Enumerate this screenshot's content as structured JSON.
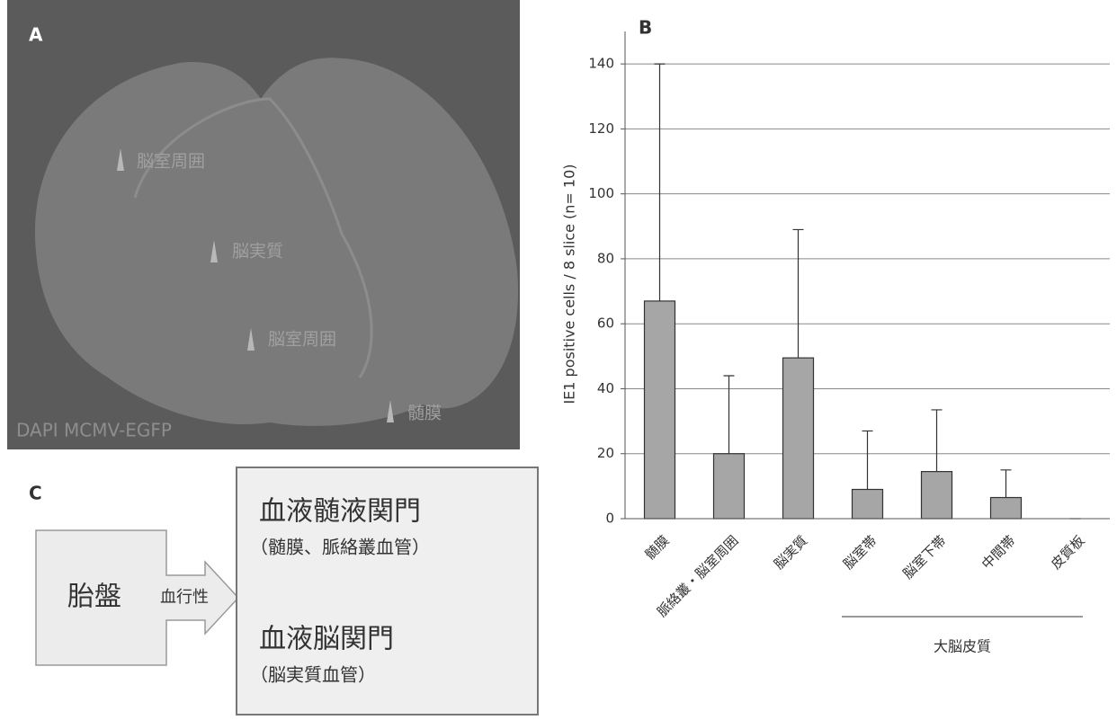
{
  "panel_a": {
    "label": "A",
    "annotations": [
      "脳室周囲",
      "脳実質",
      "脳室周囲",
      "髄膜"
    ],
    "caption": "DAPI  MCMV-EGFP"
  },
  "chart_data": {
    "type": "bar",
    "panel_label": "B",
    "ylabel": "IE1 positive cells / 8 slice  (n= 10)",
    "categories": [
      "髄膜",
      "脈絡叢・脳室周囲",
      "脳実質",
      "脳室帯",
      "脳室下帯",
      "中間帯",
      "皮質板"
    ],
    "values": [
      67,
      20,
      49.5,
      9,
      14.5,
      6.5,
      0
    ],
    "errors": [
      73,
      24,
      39.5,
      18,
      19,
      8.5,
      0
    ],
    "color": "#a6a6a6",
    "ylim": [
      0,
      150
    ],
    "yticks": [
      0,
      20,
      40,
      60,
      80,
      100,
      120,
      140
    ],
    "grid": true,
    "group_label": "大脳皮質"
  },
  "panel_c": {
    "label": "C",
    "source": "胎盤",
    "route": "血行性",
    "barriers": [
      {
        "title": "血液髄液関門",
        "detail": "（髄膜、脈絡叢血管）"
      },
      {
        "title": "血液脳関門",
        "detail": "（脳実質血管）"
      }
    ]
  }
}
